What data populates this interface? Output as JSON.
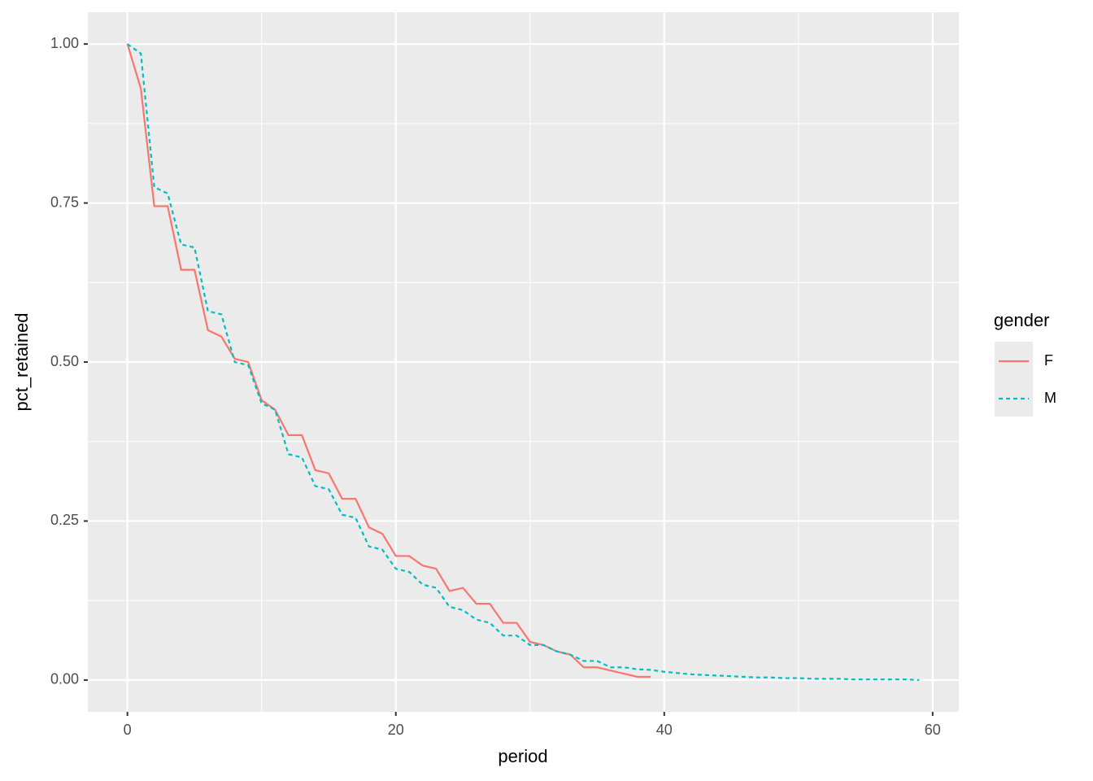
{
  "chart_data": {
    "type": "line",
    "xlabel": "period",
    "ylabel": "pct_retained",
    "xlim": [
      -2.95,
      61.95
    ],
    "ylim": [
      -0.05,
      1.05
    ],
    "xticks": [
      0,
      20,
      40,
      60
    ],
    "yticks": [
      {
        "value": 0,
        "label": "0.00"
      },
      {
        "value": 0.25,
        "label": "0.25"
      },
      {
        "value": 0.5,
        "label": "0.50"
      },
      {
        "value": 0.75,
        "label": "0.75"
      },
      {
        "value": 1,
        "label": "1.00"
      }
    ],
    "xminor": [
      10,
      30,
      50
    ],
    "yminor": [
      0.125,
      0.375,
      0.625,
      0.875
    ],
    "grid": true,
    "legend_title": "gender",
    "legend_position": "right",
    "series": [
      {
        "name": "F",
        "color": "#F8766D",
        "linetype": "solid",
        "x": [
          0,
          1,
          2,
          3,
          4,
          5,
          6,
          7,
          8,
          9,
          10,
          11,
          12,
          13,
          14,
          15,
          16,
          17,
          18,
          19,
          20,
          21,
          22,
          23,
          24,
          25,
          26,
          27,
          28,
          29,
          30,
          31,
          32,
          33,
          34,
          35,
          36,
          37,
          38,
          39
        ],
        "values": [
          1.0,
          0.93,
          0.745,
          0.745,
          0.645,
          0.645,
          0.55,
          0.54,
          0.505,
          0.5,
          0.44,
          0.425,
          0.385,
          0.385,
          0.33,
          0.325,
          0.285,
          0.285,
          0.24,
          0.23,
          0.195,
          0.195,
          0.18,
          0.175,
          0.14,
          0.145,
          0.12,
          0.12,
          0.09,
          0.09,
          0.06,
          0.055,
          0.045,
          0.04,
          0.02,
          0.02,
          0.015,
          0.01,
          0.005,
          0.005
        ]
      },
      {
        "name": "M",
        "color": "#00BFC4",
        "linetype": "dashed",
        "x": [
          0,
          1,
          2,
          3,
          4,
          5,
          6,
          7,
          8,
          9,
          10,
          11,
          12,
          13,
          14,
          15,
          16,
          17,
          18,
          19,
          20,
          21,
          22,
          23,
          24,
          25,
          26,
          27,
          28,
          29,
          30,
          31,
          32,
          33,
          34,
          35,
          36,
          37,
          38,
          39,
          40,
          41,
          42,
          43,
          44,
          45,
          46,
          47,
          48,
          49,
          50,
          51,
          52,
          53,
          54,
          55,
          56,
          57,
          58,
          59
        ],
        "values": [
          1.0,
          0.985,
          0.775,
          0.765,
          0.685,
          0.68,
          0.58,
          0.575,
          0.5,
          0.495,
          0.435,
          0.425,
          0.355,
          0.35,
          0.305,
          0.3,
          0.26,
          0.255,
          0.21,
          0.205,
          0.175,
          0.17,
          0.15,
          0.145,
          0.115,
          0.11,
          0.095,
          0.09,
          0.07,
          0.07,
          0.055,
          0.055,
          0.045,
          0.04,
          0.03,
          0.03,
          0.02,
          0.02,
          0.017,
          0.016,
          0.013,
          0.011,
          0.009,
          0.008,
          0.007,
          0.006,
          0.005,
          0.004,
          0.004,
          0.003,
          0.003,
          0.002,
          0.002,
          0.002,
          0.001,
          0.001,
          0.001,
          0.001,
          0.001,
          0.0
        ]
      }
    ]
  }
}
